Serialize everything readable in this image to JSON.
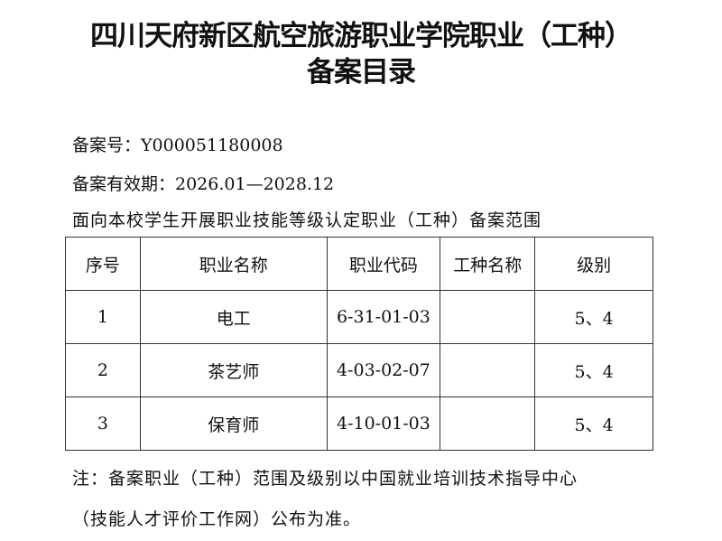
{
  "title_line1": "四川天府新区航空旅游职业学院职业（工种）",
  "title_line2": "备案目录",
  "filing_number": "备案号：Y000051180008",
  "validity": "备案有效期：2026.01—2028.12",
  "scope": "面向本校学生开展职业技能等级认定职业（工种）备案范围",
  "table": {
    "headers": [
      "序号",
      "职业名称",
      "职业代码",
      "工种名称",
      "级别"
    ],
    "rows": [
      [
        "1",
        "电工",
        "6-31-01-03",
        "",
        "5、4"
      ],
      [
        "2",
        "茶艺师",
        "4-03-02-07",
        "",
        "5、4"
      ],
      [
        "3",
        "保育师",
        "4-10-01-03",
        "",
        "5、4"
      ]
    ]
  },
  "note_line1": "注：备案职业（工种）范围及级别以中国就业培训技术指导中心",
  "note_line2": "（技能人才评价工作网）公布为准。"
}
